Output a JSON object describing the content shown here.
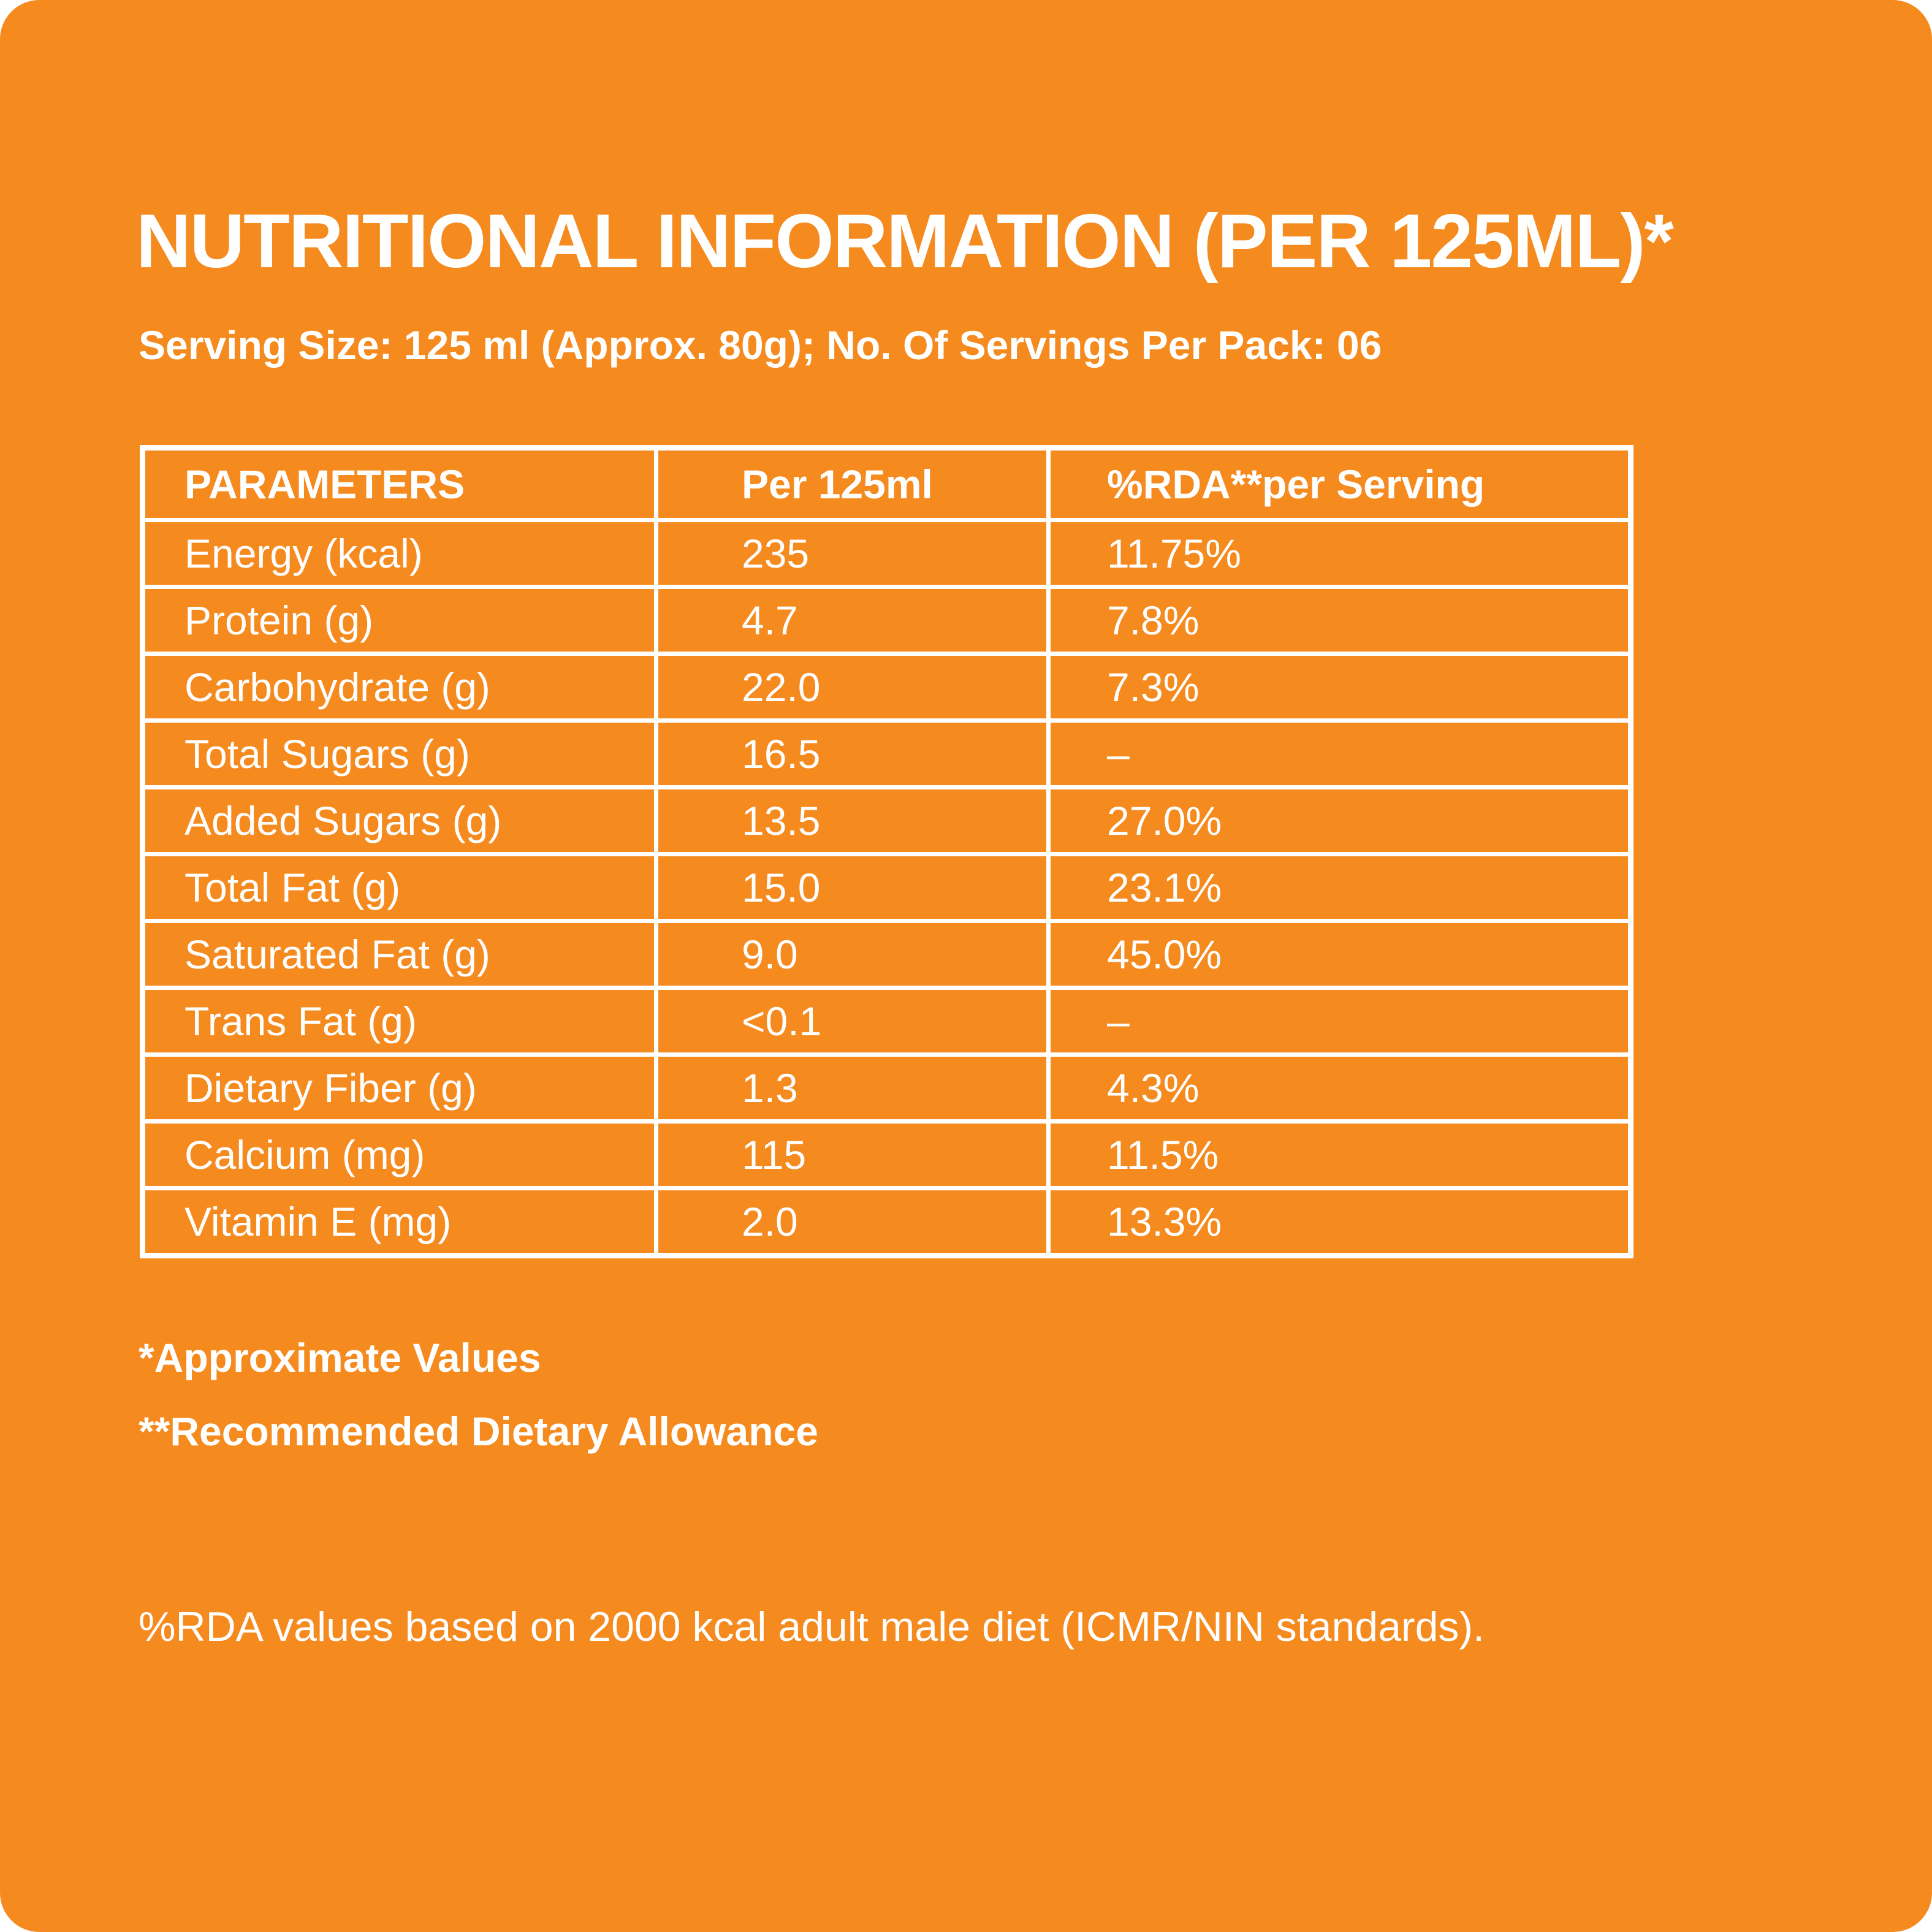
{
  "header": {
    "title": "NUTRITIONAL INFORMATION (PER 125ML)*",
    "subtitle": "Serving Size: 125 ml (Approx. 80g); No. Of Servings Per Pack: 06"
  },
  "table": {
    "columns": [
      "PARAMETERS",
      "Per 125ml",
      "%RDA**per Serving"
    ],
    "rows": [
      {
        "parameter": "Energy (kcal)",
        "per_125ml": "235",
        "rda": "11.75%"
      },
      {
        "parameter": "Protein (g)",
        "per_125ml": "4.7",
        "rda": "7.8%"
      },
      {
        "parameter": "Carbohydrate (g)",
        "per_125ml": "22.0",
        "rda": "7.3%"
      },
      {
        "parameter": "Total Sugars (g)",
        "per_125ml": "16.5",
        "rda": "–"
      },
      {
        "parameter": "Added Sugars (g)",
        "per_125ml": "13.5",
        "rda": "27.0%"
      },
      {
        "parameter": "Total Fat (g)",
        "per_125ml": "15.0",
        "rda": "23.1%"
      },
      {
        "parameter": "Saturated Fat (g)",
        "per_125ml": "9.0",
        "rda": "45.0%"
      },
      {
        "parameter": "Trans Fat (g)",
        "per_125ml": "<0.1",
        "rda": "–"
      },
      {
        "parameter": "Dietary Fiber (g)",
        "per_125ml": "1.3",
        "rda": "4.3%"
      },
      {
        "parameter": "Calcium (mg)",
        "per_125ml": "115",
        "rda": "11.5%"
      },
      {
        "parameter": "Vitamin E (mg)",
        "per_125ml": "2.0",
        "rda": "13.3%"
      }
    ]
  },
  "footnotes": {
    "approx": "*Approximate Values",
    "rda": "**Recommended Dietary Allowance"
  },
  "note": "%RDA values based on 2000 kcal adult male diet (ICMR/NIN standards).",
  "colors": {
    "background": "#f58a1f",
    "text": "#ffffff"
  }
}
